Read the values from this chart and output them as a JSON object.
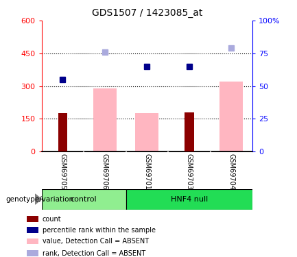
{
  "title": "GDS1507 / 1423085_at",
  "samples": [
    "GSM69705",
    "GSM69706",
    "GSM69701",
    "GSM69703",
    "GSM69704"
  ],
  "count_values": [
    175,
    0,
    0,
    180,
    0
  ],
  "pink_bar_values": [
    0,
    290,
    175,
    0,
    320
  ],
  "dark_blue_square_values": [
    330,
    0,
    390,
    390,
    0
  ],
  "light_blue_square_values": [
    0,
    455,
    0,
    0,
    475
  ],
  "ylim_left": [
    0,
    600
  ],
  "ylim_right": [
    0,
    100
  ],
  "yticks_left": [
    0,
    150,
    300,
    450,
    600
  ],
  "yticks_right": [
    0,
    25,
    50,
    75,
    100
  ],
  "ytick_labels_left": [
    "0",
    "150",
    "300",
    "450",
    "600"
  ],
  "ytick_labels_right": [
    "0",
    "25",
    "50",
    "75",
    "100%"
  ],
  "hlines": [
    150,
    300,
    450
  ],
  "ctrl_color": "#90EE90",
  "hnf_color": "#22DD55",
  "count_color": "#8B0000",
  "pink_bar_color": "#FFB6C1",
  "dark_blue_color": "#00008B",
  "light_blue_color": "#AAAADD",
  "tick_label_area_bg": "#C0C0C0",
  "legend_items": [
    {
      "label": "count",
      "color": "#8B0000"
    },
    {
      "label": "percentile rank within the sample",
      "color": "#00008B"
    },
    {
      "label": "value, Detection Call = ABSENT",
      "color": "#FFB6C1"
    },
    {
      "label": "rank, Detection Call = ABSENT",
      "color": "#AAAADD"
    }
  ],
  "genotype_label": "genotype/variation"
}
